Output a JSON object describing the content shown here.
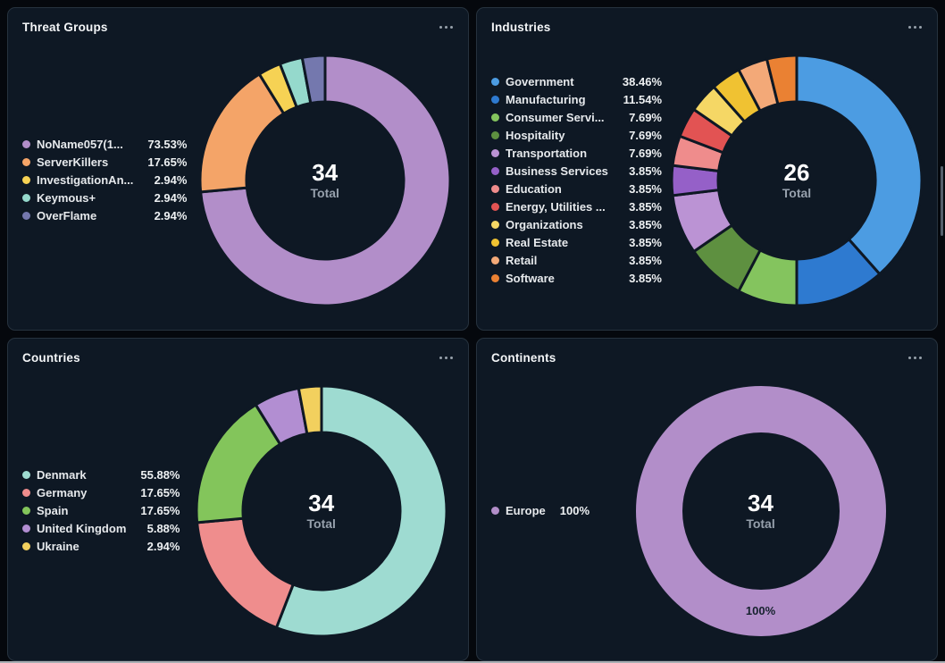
{
  "ui": {
    "icons": {
      "card_menu": "ellipsis-horizontal"
    },
    "colors": {
      "page_bg": "#05080d",
      "card_bg": "#0e1824",
      "card_border": "#26323e",
      "title_text": "#f3f5f7",
      "legend_text": "#e6e9ec",
      "center_number": "#ffffff",
      "center_caption": "#96a0ac",
      "slice_separator": "#0e1824",
      "scrollbar_thumb": "#55606c"
    }
  },
  "chart_data": [
    {
      "type": "pie",
      "title": "Threat Groups",
      "legend_position": "left",
      "center_value": "34",
      "center_label": "Total",
      "categories": [
        "NoName057(1...",
        "ServerKillers",
        "InvestigationAn...",
        "Keymous+",
        "OverFlame"
      ],
      "values": [
        25,
        6,
        1,
        1,
        1
      ],
      "percent_labels": [
        "73.53%",
        "17.65%",
        "2.94%",
        "2.94%",
        "2.94%"
      ],
      "colors": [
        "#b28ec9",
        "#f4a468",
        "#f6d254",
        "#95d9cc",
        "#7478ae"
      ]
    },
    {
      "type": "pie",
      "title": "Industries",
      "legend_position": "left",
      "center_value": "26",
      "center_label": "Total",
      "categories": [
        "Government",
        "Manufacturing",
        "Consumer Servi...",
        "Hospitality",
        "Transportation",
        "Business Services",
        "Education",
        "Energy, Utilities ...",
        "Organizations",
        "Real Estate",
        "Retail",
        "Software"
      ],
      "values": [
        10,
        3,
        2,
        2,
        2,
        1,
        1,
        1,
        1,
        1,
        1,
        1
      ],
      "percent_labels": [
        "38.46%",
        "11.54%",
        "7.69%",
        "7.69%",
        "7.69%",
        "3.85%",
        "3.85%",
        "3.85%",
        "3.85%",
        "3.85%",
        "3.85%",
        "3.85%"
      ],
      "colors": [
        "#4c9ce2",
        "#2e7ad0",
        "#84c45e",
        "#5e9040",
        "#bb93d4",
        "#9560c8",
        "#ef8c8c",
        "#e25353",
        "#f5d765",
        "#f0c232",
        "#f3a978",
        "#ea8133"
      ]
    },
    {
      "type": "pie",
      "title": "Countries",
      "legend_position": "left",
      "center_value": "34",
      "center_label": "Total",
      "categories": [
        "Denmark",
        "Germany",
        "Spain",
        "United Kingdom",
        "Ukraine"
      ],
      "values": [
        19,
        6,
        6,
        2,
        1
      ],
      "percent_labels": [
        "55.88%",
        "17.65%",
        "17.65%",
        "5.88%",
        "2.94%"
      ],
      "colors": [
        "#9edbd1",
        "#ef8d8d",
        "#83c55b",
        "#b28ed2",
        "#f2d05e"
      ]
    },
    {
      "type": "pie",
      "title": "Continents",
      "legend_position": "left",
      "center_value": "34",
      "center_label": "Total",
      "slice_label": "100%",
      "categories": [
        "Europe"
      ],
      "values": [
        34
      ],
      "percent_labels": [
        "100%"
      ],
      "colors": [
        "#b28ec9"
      ]
    }
  ]
}
